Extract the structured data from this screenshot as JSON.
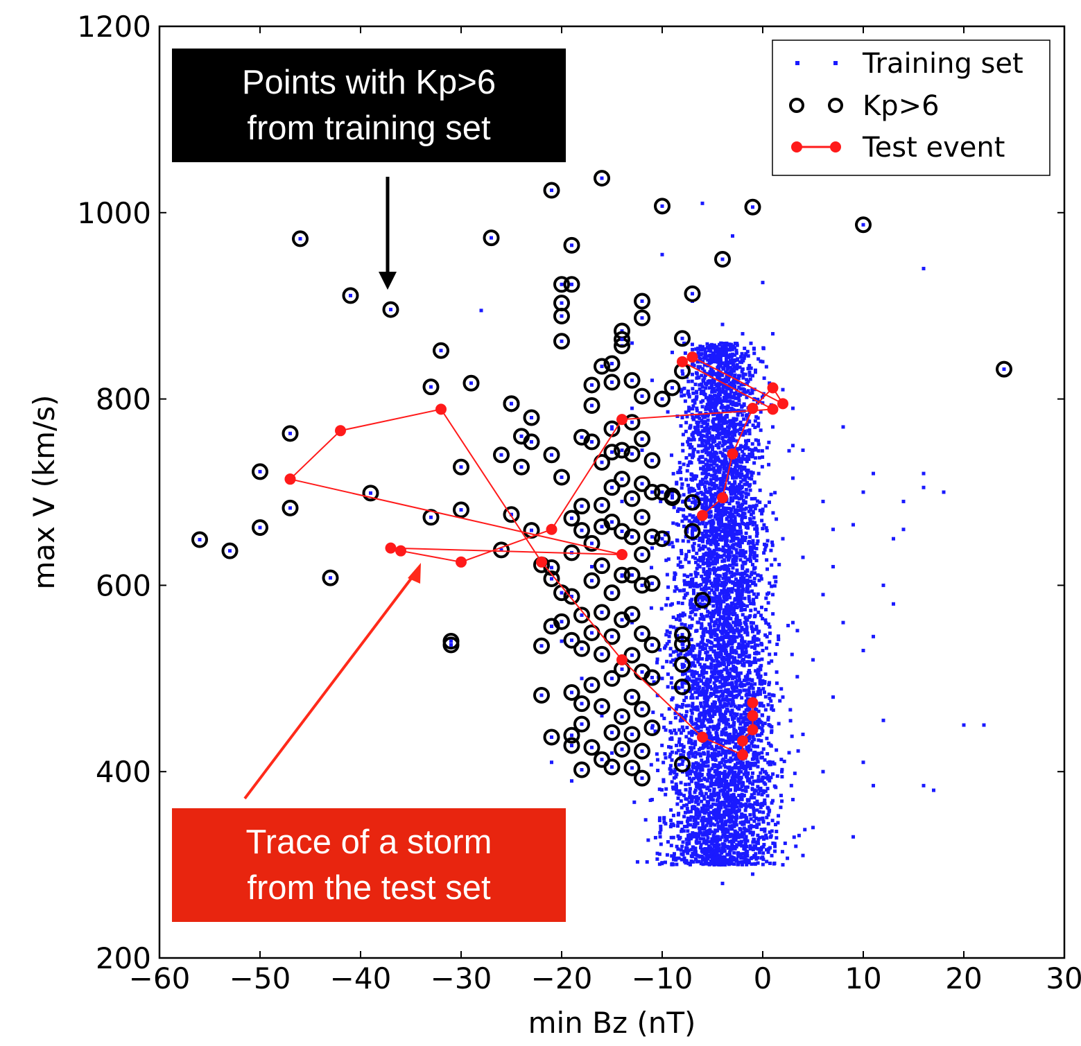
{
  "colors": {
    "training": "#1a1aff",
    "kp_ring": "#000000",
    "test": "#ff1a1a",
    "callout_black_bg": "#000000",
    "callout_red_bg": "#e8250f",
    "callout_text": "#ffffff"
  },
  "annotations": {
    "black_box": {
      "line1": "Points with Kp>6",
      "line2": "from training set"
    },
    "red_box": {
      "line1": "Trace of a storm",
      "line2": "from the test set"
    }
  },
  "chart_data": {
    "type": "scatter",
    "title": "",
    "xlabel": "min Bz (nT)",
    "ylabel": "max V (km/s)",
    "xlim": [
      -60,
      30
    ],
    "ylim": [
      200,
      1200
    ],
    "xticks": [
      -60,
      -50,
      -40,
      -30,
      -20,
      -10,
      0,
      10,
      20,
      30
    ],
    "yticks": [
      200,
      400,
      600,
      800,
      1000,
      1200
    ],
    "grid": false,
    "legend": {
      "position": "top-right",
      "entries": [
        "Training set",
        "Kp>6",
        "Test event"
      ]
    },
    "series": [
      {
        "name": "Training set",
        "kind": "points",
        "description_of_distribution": "dense cloud roughly x in [-15, 8], y in [280, 870], peaking near x=-4",
        "points": [
          [
            -6,
            1010
          ],
          [
            -3,
            975
          ],
          [
            0,
            925
          ],
          [
            -10,
            955
          ],
          [
            -12,
            905
          ],
          [
            -7,
            905
          ],
          [
            -4,
            880
          ],
          [
            -2,
            870
          ],
          [
            1,
            870
          ],
          [
            -13,
            860
          ],
          [
            -9,
            850
          ],
          [
            -3,
            855
          ],
          [
            0,
            840
          ],
          [
            -11,
            820
          ],
          [
            -6,
            840
          ],
          [
            -1,
            825
          ],
          [
            2,
            810
          ],
          [
            3,
            790
          ],
          [
            -13,
            790
          ],
          [
            -15,
            770
          ],
          [
            -5,
            800
          ],
          [
            -8,
            780
          ],
          [
            1,
            770
          ],
          [
            4,
            745
          ],
          [
            -12,
            745
          ],
          [
            -3,
            760
          ],
          [
            -1,
            740
          ],
          [
            -6,
            720
          ],
          [
            3,
            715
          ],
          [
            6,
            690
          ],
          [
            -9,
            700
          ],
          [
            -14,
            690
          ],
          [
            -4,
            690
          ],
          [
            0,
            680
          ],
          [
            2,
            650
          ],
          [
            7,
            660
          ],
          [
            9,
            665
          ],
          [
            -7,
            650
          ],
          [
            -11,
            640
          ],
          [
            -2,
            620
          ],
          [
            4,
            630
          ],
          [
            -5,
            600
          ],
          [
            1,
            590
          ],
          [
            6,
            590
          ],
          [
            -9,
            580
          ],
          [
            3,
            560
          ],
          [
            8,
            560
          ],
          [
            -13,
            560
          ],
          [
            -6,
            540
          ],
          [
            0,
            530
          ],
          [
            5,
            520
          ],
          [
            -3,
            500
          ],
          [
            -10,
            500
          ],
          [
            2,
            480
          ],
          [
            7,
            480
          ],
          [
            -7,
            470
          ],
          [
            -1,
            450
          ],
          [
            4,
            440
          ],
          [
            -13,
            440
          ],
          [
            -4,
            420
          ],
          [
            1,
            410
          ],
          [
            6,
            400
          ],
          [
            -9,
            400
          ],
          [
            -2,
            380
          ],
          [
            3,
            370
          ],
          [
            -6,
            360
          ],
          [
            0,
            350
          ],
          [
            5,
            340
          ],
          [
            -3,
            320
          ],
          [
            2,
            300
          ],
          [
            -1,
            290
          ],
          [
            -4,
            280
          ],
          [
            4,
            310
          ],
          [
            9,
            330
          ],
          [
            -11,
            370
          ],
          [
            -15,
            420
          ],
          [
            -16,
            460
          ],
          [
            -18,
            500
          ],
          [
            -20,
            540
          ],
          [
            -21,
            410
          ],
          [
            -19,
            390
          ],
          [
            10,
            410
          ],
          [
            11,
            385
          ],
          [
            12,
            455
          ],
          [
            10,
            530
          ],
          [
            11,
            545
          ],
          [
            7,
            620
          ],
          [
            12,
            600
          ],
          [
            13,
            580
          ],
          [
            13,
            650
          ],
          [
            14,
            660
          ],
          [
            14,
            690
          ],
          [
            17,
            380
          ],
          [
            16,
            385
          ],
          [
            16,
            720
          ],
          [
            16,
            705
          ],
          [
            18,
            700
          ],
          [
            20,
            450
          ],
          [
            22,
            450
          ],
          [
            16,
            940
          ],
          [
            -28,
            895
          ],
          [
            8,
            770
          ],
          [
            11,
            720
          ],
          [
            10,
            700
          ],
          [
            -17,
            620
          ],
          [
            -14,
            610
          ],
          [
            -8,
            620
          ],
          [
            -2,
            700
          ],
          [
            -5,
            760
          ],
          [
            3,
            750
          ]
        ]
      },
      {
        "name": "Kp>6",
        "kind": "rings",
        "points": [
          [
            -56,
            649
          ],
          [
            -53,
            637
          ],
          [
            -50,
            662
          ],
          [
            -50,
            722
          ],
          [
            -47,
            763
          ],
          [
            -47,
            683
          ],
          [
            -46,
            972
          ],
          [
            -43,
            608
          ],
          [
            -41,
            911
          ],
          [
            -39,
            699
          ],
          [
            -37,
            896
          ],
          [
            -33,
            673
          ],
          [
            -33,
            813
          ],
          [
            -32,
            852
          ],
          [
            -31,
            540
          ],
          [
            -31,
            536
          ],
          [
            -30,
            727
          ],
          [
            -30,
            681
          ],
          [
            -29,
            817
          ],
          [
            -27,
            973
          ],
          [
            -26,
            638
          ],
          [
            -26,
            740
          ],
          [
            -25,
            795
          ],
          [
            -25,
            795
          ],
          [
            -25,
            676
          ],
          [
            -24,
            727
          ],
          [
            -24,
            760
          ],
          [
            -23,
            754
          ],
          [
            -23,
            780
          ],
          [
            -23,
            659
          ],
          [
            -22,
            622
          ],
          [
            -22,
            535
          ],
          [
            -22,
            482
          ],
          [
            -21,
            740
          ],
          [
            -21,
            619
          ],
          [
            -21,
            607
          ],
          [
            -21,
            556
          ],
          [
            -21,
            437
          ],
          [
            -20,
            889
          ],
          [
            -20,
            903
          ],
          [
            -20,
            862
          ],
          [
            -20,
            923
          ],
          [
            -20,
            716
          ],
          [
            -20,
            561
          ],
          [
            -20,
            592
          ],
          [
            -19,
            672
          ],
          [
            -19,
            635
          ],
          [
            -19,
            588
          ],
          [
            -19,
            541
          ],
          [
            -19,
            485
          ],
          [
            -19,
            439
          ],
          [
            -19,
            428
          ],
          [
            -19,
            923
          ],
          [
            -19,
            965
          ],
          [
            -18,
            759
          ],
          [
            -18,
            685
          ],
          [
            -18,
            659
          ],
          [
            -18,
            568
          ],
          [
            -18,
            532
          ],
          [
            -18,
            473
          ],
          [
            -18,
            451
          ],
          [
            -18,
            402
          ],
          [
            -17,
            815
          ],
          [
            -17,
            793
          ],
          [
            -17,
            754
          ],
          [
            -17,
            645
          ],
          [
            -17,
            605
          ],
          [
            -17,
            549
          ],
          [
            -17,
            493
          ],
          [
            -17,
            426
          ],
          [
            -16,
            835
          ],
          [
            -16,
            732
          ],
          [
            -16,
            686
          ],
          [
            -16,
            663
          ],
          [
            -16,
            621
          ],
          [
            -16,
            571
          ],
          [
            -16,
            526
          ],
          [
            -16,
            470
          ],
          [
            -16,
            413
          ],
          [
            -16,
            1037
          ],
          [
            -15,
            818
          ],
          [
            -15,
            768
          ],
          [
            -15,
            743
          ],
          [
            -15,
            705
          ],
          [
            -15,
            668
          ],
          [
            -15,
            592
          ],
          [
            -15,
            545
          ],
          [
            -15,
            500
          ],
          [
            -15,
            442
          ],
          [
            -15,
            405
          ],
          [
            -15,
            838
          ],
          [
            -14,
            873
          ],
          [
            -14,
            857
          ],
          [
            -14,
            745
          ],
          [
            -14,
            714
          ],
          [
            -14,
            658
          ],
          [
            -14,
            611
          ],
          [
            -14,
            563
          ],
          [
            -14,
            510
          ],
          [
            -14,
            459
          ],
          [
            -14,
            424
          ],
          [
            -14,
            864
          ],
          [
            -13,
            820
          ],
          [
            -13,
            775
          ],
          [
            -13,
            741
          ],
          [
            -13,
            693
          ],
          [
            -13,
            652
          ],
          [
            -13,
            611
          ],
          [
            -13,
            569
          ],
          [
            -13,
            525
          ],
          [
            -13,
            480
          ],
          [
            -13,
            440
          ],
          [
            -13,
            404
          ],
          [
            -12,
            905
          ],
          [
            -12,
            887
          ],
          [
            -12,
            803
          ],
          [
            -12,
            757
          ],
          [
            -12,
            709
          ],
          [
            -12,
            673
          ],
          [
            -12,
            633
          ],
          [
            -12,
            600
          ],
          [
            -12,
            548
          ],
          [
            -12,
            507
          ],
          [
            -12,
            467
          ],
          [
            -12,
            422
          ],
          [
            -12,
            393
          ],
          [
            -11,
            734
          ],
          [
            -11,
            700
          ],
          [
            -11,
            652
          ],
          [
            -11,
            602
          ],
          [
            -11,
            536
          ],
          [
            -11,
            501
          ],
          [
            -11,
            447
          ],
          [
            -10,
            1007
          ],
          [
            -10,
            800
          ],
          [
            -10,
            700
          ],
          [
            -10,
            650
          ],
          [
            -9,
            812
          ],
          [
            -9,
            696
          ],
          [
            -9,
            694
          ],
          [
            -8,
            865
          ],
          [
            -8,
            830
          ],
          [
            -8,
            547
          ],
          [
            -8,
            537
          ],
          [
            -8,
            515
          ],
          [
            -8,
            491
          ],
          [
            -8,
            408
          ],
          [
            -7,
            913
          ],
          [
            -7,
            689
          ],
          [
            -7,
            658
          ],
          [
            -6,
            584
          ],
          [
            -4,
            950
          ],
          [
            -1,
            1006
          ],
          [
            10,
            987
          ],
          [
            24,
            832
          ],
          [
            -21,
            1024
          ]
        ]
      },
      {
        "name": "Test event",
        "kind": "line",
        "points": [
          [
            -2,
            418
          ],
          [
            -2,
            437
          ],
          [
            -1,
            445
          ],
          [
            -1,
            460
          ],
          [
            -1,
            474
          ],
          [
            -2,
            433
          ],
          [
            -6,
            437
          ],
          [
            -14,
            636
          ],
          [
            -27,
            640
          ],
          [
            -37,
            640
          ],
          [
            -37,
            638
          ],
          [
            -30,
            625
          ],
          [
            -25,
            650
          ],
          [
            -20,
            690
          ],
          [
            -13,
            776
          ],
          [
            -11,
            777
          ],
          [
            -1,
            790
          ],
          [
            2,
            795
          ],
          [
            1,
            812
          ],
          [
            -6,
            845
          ],
          [
            -8,
            840
          ],
          [
            1,
            812
          ],
          [
            2,
            795
          ],
          [
            -1,
            790
          ],
          [
            -3,
            740
          ],
          [
            -4,
            695
          ],
          [
            -6,
            675
          ]
        ],
        "storm_trace": [
          [
            -47,
            714
          ],
          [
            -32,
            789
          ],
          [
            -42,
            766
          ],
          [
            -47,
            714
          ],
          [
            -14,
            633
          ],
          [
            -36,
            637
          ],
          [
            -30,
            625
          ],
          [
            -21,
            660
          ],
          [
            -14,
            778
          ],
          [
            1,
            789
          ],
          [
            2,
            795
          ],
          [
            1,
            812
          ],
          [
            -7,
            845
          ],
          [
            -3,
            741
          ],
          [
            -4,
            694
          ],
          [
            -6,
            675
          ]
        ],
        "storm_trace_high": [
          [
            -32,
            789
          ],
          [
            -22,
            625
          ],
          [
            -14,
            520
          ],
          [
            -6,
            437
          ],
          [
            -2,
            418
          ]
        ]
      }
    ]
  }
}
